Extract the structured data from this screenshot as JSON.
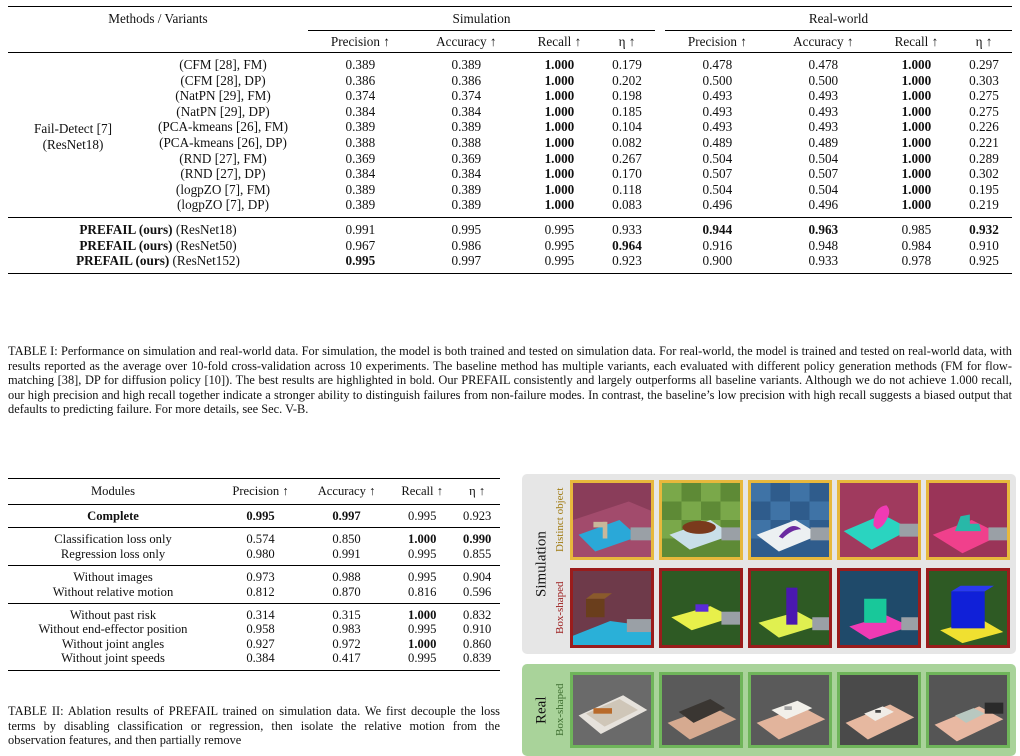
{
  "table1": {
    "header": {
      "methods": "Methods / Variants",
      "simulation": "Simulation",
      "real_world": "Real-world",
      "metrics": [
        "Precision ↑",
        "Accuracy ↑",
        "Recall ↑",
        "η ↑"
      ]
    },
    "baseline_group": {
      "line1": "Fail-Detect [7]",
      "line2": "(ResNet18)"
    },
    "baseline_rows": [
      {
        "variant": "(CFM [28], FM)",
        "sim": [
          "0.389",
          "0.389",
          "1.000",
          "0.179"
        ],
        "real": [
          "0.478",
          "0.478",
          "1.000",
          "0.297"
        ]
      },
      {
        "variant": "(CFM [28], DP)",
        "sim": [
          "0.386",
          "0.386",
          "1.000",
          "0.202"
        ],
        "real": [
          "0.500",
          "0.500",
          "1.000",
          "0.303"
        ]
      },
      {
        "variant": "(NatPN [29], FM)",
        "sim": [
          "0.374",
          "0.374",
          "1.000",
          "0.198"
        ],
        "real": [
          "0.493",
          "0.493",
          "1.000",
          "0.275"
        ]
      },
      {
        "variant": "(NatPN [29], DP)",
        "sim": [
          "0.384",
          "0.384",
          "1.000",
          "0.185"
        ],
        "real": [
          "0.493",
          "0.493",
          "1.000",
          "0.275"
        ]
      },
      {
        "variant": "(PCA-kmeans [26], FM)",
        "sim": [
          "0.389",
          "0.389",
          "1.000",
          "0.104"
        ],
        "real": [
          "0.493",
          "0.493",
          "1.000",
          "0.226"
        ]
      },
      {
        "variant": "(PCA-kmeans [26], DP)",
        "sim": [
          "0.388",
          "0.388",
          "1.000",
          "0.082"
        ],
        "real": [
          "0.489",
          "0.489",
          "1.000",
          "0.221"
        ]
      },
      {
        "variant": "(RND [27], FM)",
        "sim": [
          "0.369",
          "0.369",
          "1.000",
          "0.267"
        ],
        "real": [
          "0.504",
          "0.504",
          "1.000",
          "0.289"
        ]
      },
      {
        "variant": "(RND [27], DP)",
        "sim": [
          "0.384",
          "0.384",
          "1.000",
          "0.170"
        ],
        "real": [
          "0.507",
          "0.507",
          "1.000",
          "0.302"
        ]
      },
      {
        "variant": "(logpZO [7], FM)",
        "sim": [
          "0.389",
          "0.389",
          "1.000",
          "0.118"
        ],
        "real": [
          "0.504",
          "0.504",
          "1.000",
          "0.195"
        ]
      },
      {
        "variant": "(logpZO [7], DP)",
        "sim": [
          "0.389",
          "0.389",
          "1.000",
          "0.083"
        ],
        "real": [
          "0.496",
          "0.496",
          "1.000",
          "0.219"
        ]
      }
    ],
    "ours_rows": [
      {
        "name": "PREFAIL (ours)",
        "backbone": "(ResNet18)",
        "sim": [
          "0.991",
          "0.995",
          "0.995",
          "0.933"
        ],
        "real": [
          "0.944",
          "0.963",
          "0.985",
          "0.932"
        ]
      },
      {
        "name": "PREFAIL (ours)",
        "backbone": "(ResNet50)",
        "sim": [
          "0.967",
          "0.986",
          "0.995",
          "0.964"
        ],
        "real": [
          "0.916",
          "0.948",
          "0.984",
          "0.910"
        ]
      },
      {
        "name": "PREFAIL (ours)",
        "backbone": "(ResNet152)",
        "sim": [
          "0.995",
          "0.997",
          "0.995",
          "0.923"
        ],
        "real": [
          "0.900",
          "0.933",
          "0.978",
          "0.925"
        ]
      }
    ],
    "caption": "TABLE I: Performance on simulation and real-world data. For simulation, the model is both trained and tested on simulation data. For real-world, the model is trained and tested on real-world data, with results reported as the average over 10-fold cross-validation across 10 experiments. The baseline method has multiple variants, each evaluated with different policy generation methods (FM for flow-matching [38], DP for diffusion policy [10]). The best results are highlighted in bold. Our PREFAIL consistently and largely outperforms all baseline variants. Although we do not achieve 1.000 recall, our high precision and high recall together indicate a stronger ability to distinguish failures from non-failure modes. In contrast, the baseline’s low precision with high recall suggests a biased output that defaults to predicting failure. For more details, see Sec. V-B."
  },
  "table2": {
    "header": [
      "Modules",
      "Precision ↑",
      "Accuracy ↑",
      "Recall ↑",
      "η ↑"
    ],
    "complete": {
      "module": "Complete",
      "values": [
        "0.995",
        "0.997",
        "0.995",
        "0.923"
      ]
    },
    "rows": [
      {
        "module": "Classification loss only",
        "values": [
          "0.574",
          "0.850",
          "1.000",
          "0.990"
        ]
      },
      {
        "module": "Regression loss only",
        "values": [
          "0.980",
          "0.991",
          "0.995",
          "0.855"
        ]
      },
      {
        "module": "Without images",
        "values": [
          "0.973",
          "0.988",
          "0.995",
          "0.904"
        ]
      },
      {
        "module": "Without relative motion",
        "values": [
          "0.812",
          "0.870",
          "0.816",
          "0.596"
        ]
      },
      {
        "module": "Without past risk",
        "values": [
          "0.314",
          "0.315",
          "1.000",
          "0.832"
        ]
      },
      {
        "module": "Without end-effector position",
        "values": [
          "0.958",
          "0.983",
          "0.995",
          "0.910"
        ]
      },
      {
        "module": "Without joint angles",
        "values": [
          "0.927",
          "0.972",
          "1.000",
          "0.860"
        ]
      },
      {
        "module": "Without joint speeds",
        "values": [
          "0.384",
          "0.417",
          "0.995",
          "0.839"
        ]
      }
    ],
    "caption": "TABLE II: Ablation results of PREFAIL trained on simulation data. We first decouple the loss terms by disabling classification or regression, then isolate the relative motion from the observation features, and then partially remove"
  },
  "figure": {
    "simulation_label": "Simulation",
    "real_label": "Real",
    "distinct_label": "Distinct object",
    "box_label": "Box-shaped",
    "colors": {
      "distinct_border": "#e7b83c",
      "box_sim_border": "#9a1c1c",
      "real_border": "#6fb55a",
      "real_panel": "#a9d39a"
    }
  }
}
